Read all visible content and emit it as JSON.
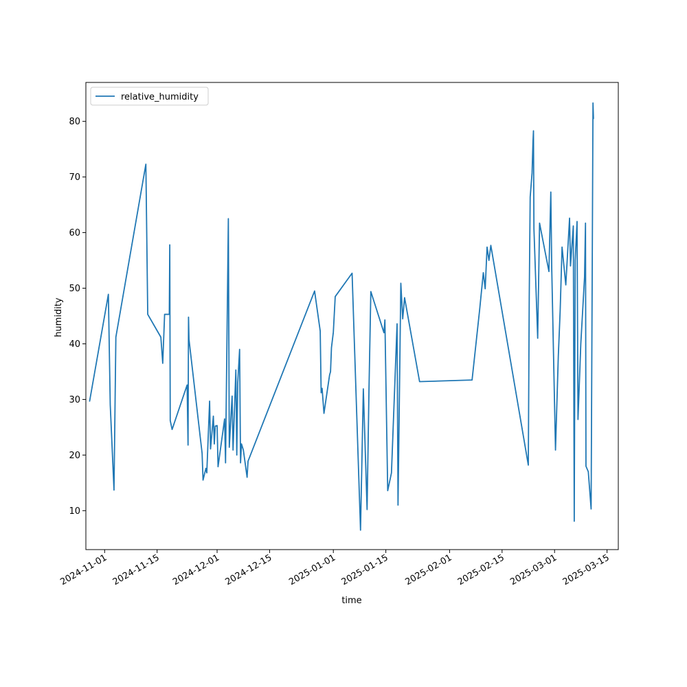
{
  "chart_data": {
    "type": "line",
    "title": "",
    "xlabel": "time",
    "ylabel": "humidity",
    "legend": "upper-left",
    "grid": false,
    "xlim": [
      "2024-10-27",
      "2025-03-18"
    ],
    "ylim": [
      3,
      87
    ],
    "x_ticks": [
      "2024-11-01",
      "2024-11-15",
      "2024-12-01",
      "2024-12-15",
      "2025-01-01",
      "2025-01-15",
      "2025-02-01",
      "2025-02-15",
      "2025-03-01",
      "2025-03-15"
    ],
    "y_ticks": [
      10,
      20,
      30,
      40,
      50,
      60,
      70,
      80
    ],
    "series": [
      {
        "name": "relative_humidity",
        "color": "#1f77b4",
        "points": [
          [
            "2024-10-28",
            29.7
          ],
          [
            "2024-11-02",
            48.9
          ],
          [
            "2024-11-02T12:00",
            29.0
          ],
          [
            "2024-11-03T12:00",
            13.7
          ],
          [
            "2024-11-04",
            41.2
          ],
          [
            "2024-11-12",
            72.3
          ],
          [
            "2024-11-12T12:00",
            45.3
          ],
          [
            "2024-11-16",
            41.2
          ],
          [
            "2024-11-16T12:00",
            36.5
          ],
          [
            "2024-11-17",
            45.3
          ],
          [
            "2024-11-18T06:00",
            45.3
          ],
          [
            "2024-11-18T09:00",
            57.8
          ],
          [
            "2024-11-18T12:00",
            26.2
          ],
          [
            "2024-11-19",
            24.6
          ],
          [
            "2024-11-23",
            32.6
          ],
          [
            "2024-11-23T06:00",
            21.8
          ],
          [
            "2024-11-23T09:00",
            44.8
          ],
          [
            "2024-11-23T12:00",
            40.8
          ],
          [
            "2024-11-27",
            20.3
          ],
          [
            "2024-11-27T06:00",
            15.5
          ],
          [
            "2024-11-28",
            17.6
          ],
          [
            "2024-11-28T06:00",
            16.8
          ],
          [
            "2024-11-29",
            29.7
          ],
          [
            "2024-11-29T06:00",
            21.1
          ],
          [
            "2024-11-30",
            27.0
          ],
          [
            "2024-11-30T06:00",
            22.0
          ],
          [
            "2024-11-30T12:00",
            25.2
          ],
          [
            "2024-12-01",
            25.3
          ],
          [
            "2024-12-01T06:00",
            17.9
          ],
          [
            "2024-12-03",
            26.5
          ],
          [
            "2024-12-03T06:00",
            18.6
          ],
          [
            "2024-12-04",
            62.5
          ],
          [
            "2024-12-04T06:00",
            21.4
          ],
          [
            "2024-12-05",
            30.6
          ],
          [
            "2024-12-05T06:00",
            20.9
          ],
          [
            "2024-12-06",
            35.3
          ],
          [
            "2024-12-06T06:00",
            20.0
          ],
          [
            "2024-12-06T12:00",
            33.0
          ],
          [
            "2024-12-07",
            39.0
          ],
          [
            "2024-12-07T06:00",
            18.6
          ],
          [
            "2024-12-07T12:00",
            22.0
          ],
          [
            "2024-12-08",
            20.9
          ],
          [
            "2024-12-09",
            16.0
          ],
          [
            "2024-12-09T06:00",
            18.9
          ],
          [
            "2024-12-27",
            49.5
          ],
          [
            "2024-12-28T12:00",
            42.3
          ],
          [
            "2024-12-28T18:00",
            31.2
          ],
          [
            "2024-12-29",
            32.0
          ],
          [
            "2024-12-29T12:00",
            27.5
          ],
          [
            "2024-12-31",
            34.4
          ],
          [
            "2024-12-31T06:00",
            35.0
          ],
          [
            "2024-12-31T12:00",
            39.3
          ],
          [
            "2025-01-01",
            42.1
          ],
          [
            "2025-01-01T12:00",
            48.5
          ],
          [
            "2025-01-06",
            52.7
          ],
          [
            "2025-01-08T06:00",
            6.5
          ],
          [
            "2025-01-09",
            31.9
          ],
          [
            "2025-01-10",
            10.2
          ],
          [
            "2025-01-10T12:00",
            31.5
          ],
          [
            "2025-01-11",
            49.4
          ],
          [
            "2025-01-14T12:00",
            42.0
          ],
          [
            "2025-01-14T18:00",
            44.3
          ],
          [
            "2025-01-15T12:00",
            13.6
          ],
          [
            "2025-01-16T12:00",
            16.8
          ],
          [
            "2025-01-18",
            43.6
          ],
          [
            "2025-01-18T06:00",
            11.0
          ],
          [
            "2025-01-19",
            50.9
          ],
          [
            "2025-01-19T12:00",
            44.5
          ],
          [
            "2025-01-20",
            48.3
          ],
          [
            "2025-01-24",
            33.2
          ],
          [
            "2025-02-07",
            33.5
          ],
          [
            "2025-02-09",
            46.0
          ],
          [
            "2025-02-10",
            52.8
          ],
          [
            "2025-02-10T12:00",
            49.9
          ],
          [
            "2025-02-11",
            57.4
          ],
          [
            "2025-02-11T12:00",
            55.0
          ],
          [
            "2025-02-12",
            57.7
          ],
          [
            "2025-02-22",
            18.2
          ],
          [
            "2025-02-22T06:00",
            48.5
          ],
          [
            "2025-02-22T12:00",
            66.4
          ],
          [
            "2025-02-23",
            70.7
          ],
          [
            "2025-02-23T06:00",
            76.4
          ],
          [
            "2025-02-23T09:00",
            78.3
          ],
          [
            "2025-02-23T12:00",
            60.7
          ],
          [
            "2025-02-24T12:00",
            41.0
          ],
          [
            "2025-02-25",
            61.7
          ],
          [
            "2025-02-27T12:00",
            53.0
          ],
          [
            "2025-02-28",
            67.3
          ],
          [
            "2025-02-28T06:00",
            53.5
          ],
          [
            "2025-03-01T06:00",
            20.9
          ],
          [
            "2025-03-02",
            37.8
          ],
          [
            "2025-03-02T12:00",
            46.0
          ],
          [
            "2025-03-03",
            57.4
          ],
          [
            "2025-03-04",
            50.6
          ],
          [
            "2025-03-05",
            62.6
          ],
          [
            "2025-03-05T06:00",
            54.0
          ],
          [
            "2025-03-06",
            61.2
          ],
          [
            "2025-03-06T06:00",
            8.1
          ],
          [
            "2025-03-06T12:00",
            55.0
          ],
          [
            "2025-03-07",
            62.0
          ],
          [
            "2025-03-07T06:00",
            26.4
          ],
          [
            "2025-03-08",
            40.0
          ],
          [
            "2025-03-09",
            52.0
          ],
          [
            "2025-03-09T06:00",
            61.7
          ],
          [
            "2025-03-09T09:00",
            18.0
          ],
          [
            "2025-03-10",
            17.0
          ],
          [
            "2025-03-10T18:00",
            10.3
          ],
          [
            "2025-03-11T06:00",
            83.3
          ],
          [
            "2025-03-11T09:00",
            80.5
          ]
        ]
      }
    ]
  }
}
